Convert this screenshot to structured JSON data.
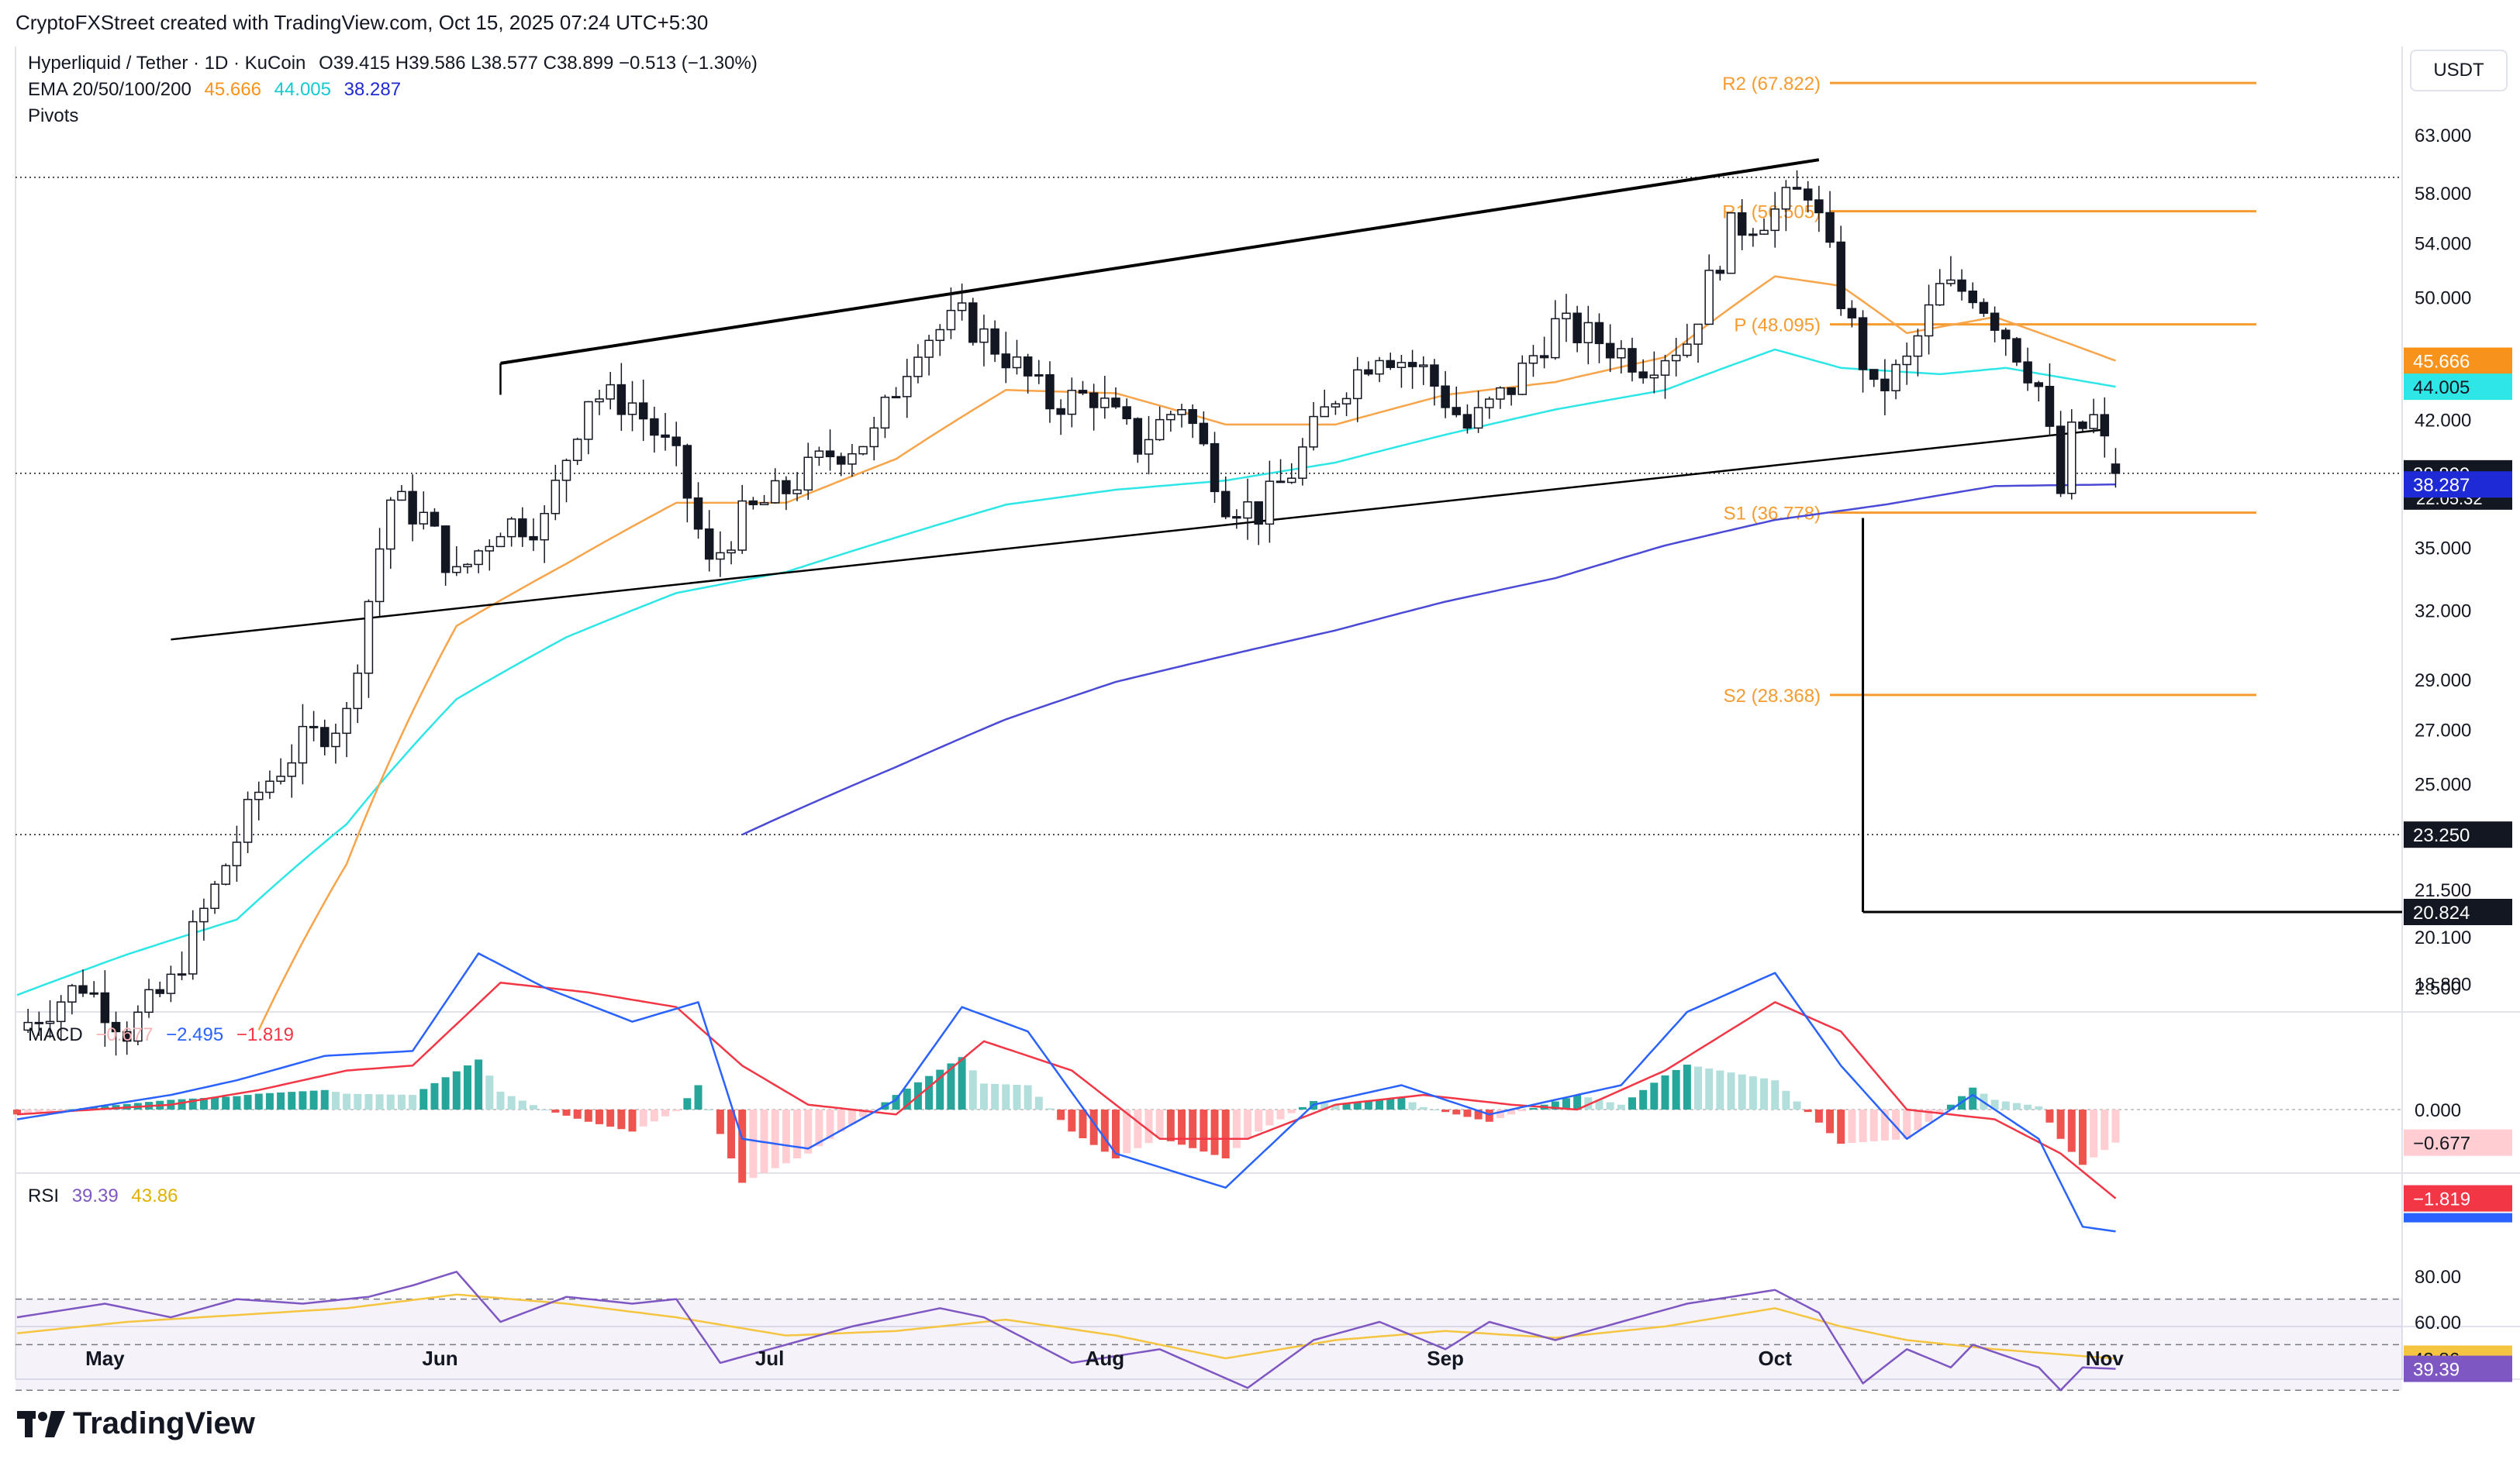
{
  "header": {
    "credit": "CryptoFXStreet created with TradingView.com, Oct 15, 2025 07:24 UTC+5:30"
  },
  "legend": {
    "symbol": "Hyperliquid / Tether · 1D · KuCoin",
    "ohlc": "O39.415  H39.586  L38.577  C38.899  −0.513 (−1.30%)",
    "ema_label": "EMA 20/50/100/200",
    "ema_values": [
      "45.666",
      "44.005",
      "38.287"
    ],
    "pivots_label": "Pivots",
    "macd_label": "MACD",
    "macd_values": [
      "−0.677",
      "−2.495",
      "−1.819"
    ],
    "rsi_label": "RSI",
    "rsi_values": [
      "39.39",
      "43.86"
    ]
  },
  "unit": "USDT",
  "logo_text": "TradingView",
  "colors": {
    "up": "#131722",
    "down": "#131722",
    "ema20": "#f7a44a",
    "ema50": "#2ee6e6",
    "ema200": "#4a4ad6",
    "pivot": "#f59b30",
    "macd_line": "#2962ff",
    "signal_line": "#f23645",
    "hist_pos": "#26a69a",
    "hist_neg": "#ef5350",
    "rsi": "#7e57c2",
    "rsi_ma": "#f5c542"
  },
  "chart_data": {
    "type": "candlestick",
    "price_axis_ticks": [
      "63.000",
      "58.000",
      "54.000",
      "50.000",
      "45.666",
      "44.005",
      "42.000",
      "38.899",
      "38.287",
      "35.000",
      "32.000",
      "29.000",
      "27.000",
      "25.000",
      "23.250",
      "21.500",
      "20.824",
      "20.100",
      "18.800"
    ],
    "price_badges": [
      {
        "label": "45.666",
        "value": 45.666,
        "color": "#f7931a"
      },
      {
        "label": "44.005",
        "value": 44.005,
        "color": "#2ee6e6"
      },
      {
        "label": "38.899",
        "value": 38.899,
        "color": "#131722"
      },
      {
        "label": "38.287",
        "value": 38.287,
        "color": "#1e2ad6"
      },
      {
        "label": "23.250",
        "value": 23.25,
        "color": "#131722"
      },
      {
        "label": "20.824",
        "value": 20.824,
        "color": "#131722"
      }
    ],
    "countdown": "22:05:32",
    "months": [
      "May",
      "Jun",
      "Jul",
      "Aug",
      "Sep",
      "Oct",
      "Nov"
    ],
    "pivots": [
      {
        "label": "R2 (67.822)",
        "value": 67.822
      },
      {
        "label": "R1 (56.505)",
        "value": 56.505
      },
      {
        "label": "P (48.095)",
        "value": 48.095
      },
      {
        "label": "S1 (36.778)",
        "value": 36.778
      },
      {
        "label": "S2 (28.368)",
        "value": 28.368
      }
    ],
    "horizontal_levels": [
      59.3,
      38.899,
      23.25
    ],
    "channel_upper": [
      [
        44,
        45.5
      ],
      [
        164,
        60.8
      ]
    ],
    "channel_lower": [
      [
        14,
        30.7
      ],
      [
        190,
        41.4
      ]
    ],
    "crash_line": {
      "day": 168,
      "high": 36.5,
      "low": 20.824
    },
    "macd_axis_ticks": [
      "2.500",
      "0.000",
      "−0.677",
      "−1.819"
    ],
    "rsi_axis_ticks": [
      "80.00",
      "60.00",
      "43.86",
      "39.39"
    ],
    "rsi_last": 39.39,
    "rsi_ma_last": 43.86,
    "anchors": [
      [
        0,
        17.6
      ],
      [
        6,
        18.8
      ],
      [
        10,
        17.6
      ],
      [
        14,
        18.8
      ],
      [
        18,
        21.5
      ],
      [
        22,
        24.7
      ],
      [
        26,
        26.5
      ],
      [
        30,
        27.5
      ],
      [
        34,
        37.5
      ],
      [
        37,
        36.5
      ],
      [
        40,
        33.5
      ],
      [
        44,
        36.2
      ],
      [
        48,
        36.3
      ],
      [
        52,
        43.5
      ],
      [
        56,
        43
      ],
      [
        60,
        39.5
      ],
      [
        63,
        34
      ],
      [
        66,
        36.5
      ],
      [
        70,
        38
      ],
      [
        74,
        40
      ],
      [
        78,
        41
      ],
      [
        82,
        47
      ],
      [
        86,
        48.5
      ],
      [
        90,
        46
      ],
      [
        94,
        43
      ],
      [
        98,
        43.5
      ],
      [
        102,
        40.5
      ],
      [
        106,
        43
      ],
      [
        110,
        37.5
      ],
      [
        113,
        36.8
      ],
      [
        116,
        39
      ],
      [
        120,
        43.5
      ],
      [
        124,
        46.5
      ],
      [
        128,
        45
      ],
      [
        132,
        41.5
      ],
      [
        136,
        44
      ],
      [
        140,
        48
      ],
      [
        144,
        47
      ],
      [
        148,
        45.5
      ],
      [
        152,
        47
      ],
      [
        156,
        55
      ],
      [
        160,
        56.5
      ],
      [
        163,
        58.5
      ],
      [
        166,
        50
      ],
      [
        169,
        43.5
      ],
      [
        172,
        45.5
      ],
      [
        175,
        50.5
      ],
      [
        178,
        50.5
      ],
      [
        181,
        47.5
      ],
      [
        184,
        44
      ],
      [
        186,
        37.8
      ],
      [
        187,
        41
      ],
      [
        189,
        42
      ],
      [
        191,
        38.9
      ]
    ],
    "ema20_anchors": [
      [
        22,
        17.6
      ],
      [
        30,
        22.3
      ],
      [
        40,
        31.3
      ],
      [
        50,
        34.2
      ],
      [
        60,
        37.3
      ],
      [
        70,
        37.3
      ],
      [
        80,
        39.7
      ],
      [
        90,
        43.8
      ],
      [
        100,
        43.6
      ],
      [
        110,
        41.7
      ],
      [
        120,
        41.7
      ],
      [
        130,
        43.5
      ],
      [
        140,
        44.3
      ],
      [
        150,
        45.9
      ],
      [
        160,
        51.5
      ],
      [
        166,
        50.8
      ],
      [
        172,
        47.5
      ],
      [
        180,
        48.6
      ],
      [
        191,
        45.666
      ]
    ],
    "ema50_anchors": [
      [
        0,
        18.5
      ],
      [
        10,
        19.6
      ],
      [
        20,
        20.6
      ],
      [
        30,
        23.6
      ],
      [
        40,
        28.2
      ],
      [
        50,
        30.8
      ],
      [
        60,
        32.8
      ],
      [
        70,
        33.8
      ],
      [
        80,
        35.5
      ],
      [
        90,
        37.2
      ],
      [
        100,
        38.0
      ],
      [
        110,
        38.5
      ],
      [
        120,
        39.5
      ],
      [
        130,
        41.1
      ],
      [
        140,
        42.6
      ],
      [
        150,
        43.8
      ],
      [
        160,
        46.4
      ],
      [
        166,
        45.2
      ],
      [
        175,
        44.8
      ],
      [
        181,
        45.2
      ],
      [
        191,
        44.005
      ]
    ],
    "ema200_anchors": [
      [
        66,
        23.25
      ],
      [
        80,
        25.6
      ],
      [
        90,
        27.4
      ],
      [
        100,
        28.9
      ],
      [
        110,
        30.0
      ],
      [
        120,
        31.1
      ],
      [
        130,
        32.4
      ],
      [
        140,
        33.5
      ],
      [
        150,
        35.1
      ],
      [
        160,
        36.4
      ],
      [
        170,
        37.2
      ],
      [
        180,
        38.2
      ],
      [
        191,
        38.287
      ]
    ],
    "macd_line_anchors": [
      [
        0,
        -0.2
      ],
      [
        14,
        0.3
      ],
      [
        20,
        0.6
      ],
      [
        28,
        1.1
      ],
      [
        36,
        1.2
      ],
      [
        42,
        3.2
      ],
      [
        48,
        2.5
      ],
      [
        56,
        1.8
      ],
      [
        62,
        2.2
      ],
      [
        66,
        -0.6
      ],
      [
        72,
        -0.8
      ],
      [
        80,
        0.2
      ],
      [
        86,
        2.1
      ],
      [
        92,
        1.6
      ],
      [
        100,
        -0.9
      ],
      [
        110,
        -1.6
      ],
      [
        118,
        0.1
      ],
      [
        126,
        0.5
      ],
      [
        134,
        -0.1
      ],
      [
        140,
        0.2
      ],
      [
        146,
        0.5
      ],
      [
        152,
        2.0
      ],
      [
        160,
        2.8
      ],
      [
        166,
        0.9
      ],
      [
        172,
        -0.6
      ],
      [
        178,
        0.3
      ],
      [
        184,
        -0.6
      ],
      [
        188,
        -2.4
      ],
      [
        191,
        -2.495
      ]
    ],
    "signal_line_anchors": [
      [
        0,
        -0.1
      ],
      [
        14,
        0.1
      ],
      [
        22,
        0.4
      ],
      [
        30,
        0.8
      ],
      [
        36,
        0.9
      ],
      [
        44,
        2.6
      ],
      [
        52,
        2.4
      ],
      [
        60,
        2.1
      ],
      [
        66,
        0.9
      ],
      [
        72,
        0.1
      ],
      [
        80,
        -0.1
      ],
      [
        88,
        1.4
      ],
      [
        96,
        0.8
      ],
      [
        104,
        -0.6
      ],
      [
        112,
        -0.6
      ],
      [
        120,
        0.1
      ],
      [
        128,
        0.3
      ],
      [
        136,
        0.1
      ],
      [
        142,
        0.0
      ],
      [
        150,
        0.8
      ],
      [
        160,
        2.2
      ],
      [
        166,
        1.6
      ],
      [
        172,
        0.0
      ],
      [
        180,
        -0.2
      ],
      [
        186,
        -0.9
      ],
      [
        191,
        -1.819
      ]
    ],
    "rsi_anchors": [
      [
        0,
        62
      ],
      [
        8,
        68
      ],
      [
        14,
        62
      ],
      [
        20,
        70
      ],
      [
        26,
        68
      ],
      [
        32,
        71
      ],
      [
        36,
        76
      ],
      [
        40,
        82
      ],
      [
        44,
        60
      ],
      [
        50,
        71
      ],
      [
        56,
        68
      ],
      [
        60,
        70
      ],
      [
        64,
        42
      ],
      [
        70,
        50
      ],
      [
        76,
        58
      ],
      [
        84,
        66
      ],
      [
        88,
        62
      ],
      [
        96,
        42
      ],
      [
        104,
        48
      ],
      [
        112,
        31
      ],
      [
        118,
        52
      ],
      [
        124,
        60
      ],
      [
        130,
        48
      ],
      [
        134,
        60
      ],
      [
        140,
        52
      ],
      [
        146,
        60
      ],
      [
        152,
        68
      ],
      [
        160,
        74
      ],
      [
        164,
        64
      ],
      [
        168,
        33
      ],
      [
        172,
        48
      ],
      [
        176,
        40
      ],
      [
        178,
        50
      ],
      [
        184,
        40
      ],
      [
        186,
        30
      ],
      [
        188,
        40
      ],
      [
        191,
        39.39
      ]
    ],
    "rsi_ma_anchors": [
      [
        0,
        55
      ],
      [
        10,
        60
      ],
      [
        20,
        63
      ],
      [
        30,
        66
      ],
      [
        40,
        72
      ],
      [
        50,
        68
      ],
      [
        60,
        62
      ],
      [
        70,
        54
      ],
      [
        80,
        56
      ],
      [
        90,
        61
      ],
      [
        100,
        54
      ],
      [
        110,
        44
      ],
      [
        120,
        52
      ],
      [
        130,
        56
      ],
      [
        140,
        53
      ],
      [
        150,
        58
      ],
      [
        160,
        66
      ],
      [
        166,
        58
      ],
      [
        172,
        52
      ],
      [
        180,
        48
      ],
      [
        191,
        43.86
      ]
    ]
  }
}
